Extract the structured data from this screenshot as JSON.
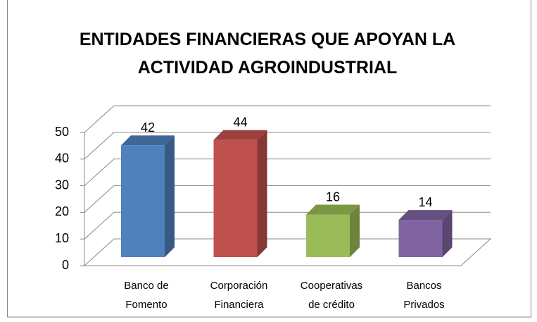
{
  "chart_data": {
    "type": "bar3d",
    "title": "ENTIDADES FINANCIERAS QUE APOYAN LA ACTIVIDAD AGROINDUSTRIAL",
    "categories": [
      "Banco de Fomento",
      "Corporación Financiera",
      "Cooperativas de crédito",
      "Bancos Privados"
    ],
    "values": [
      42,
      44,
      16,
      14
    ],
    "colors": [
      "#4f81bd",
      "#c0504d",
      "#9bbb59",
      "#8064a2"
    ],
    "ylim": [
      0,
      50
    ],
    "yticks": [
      0,
      10,
      20,
      30,
      40,
      50
    ],
    "grid": true
  }
}
